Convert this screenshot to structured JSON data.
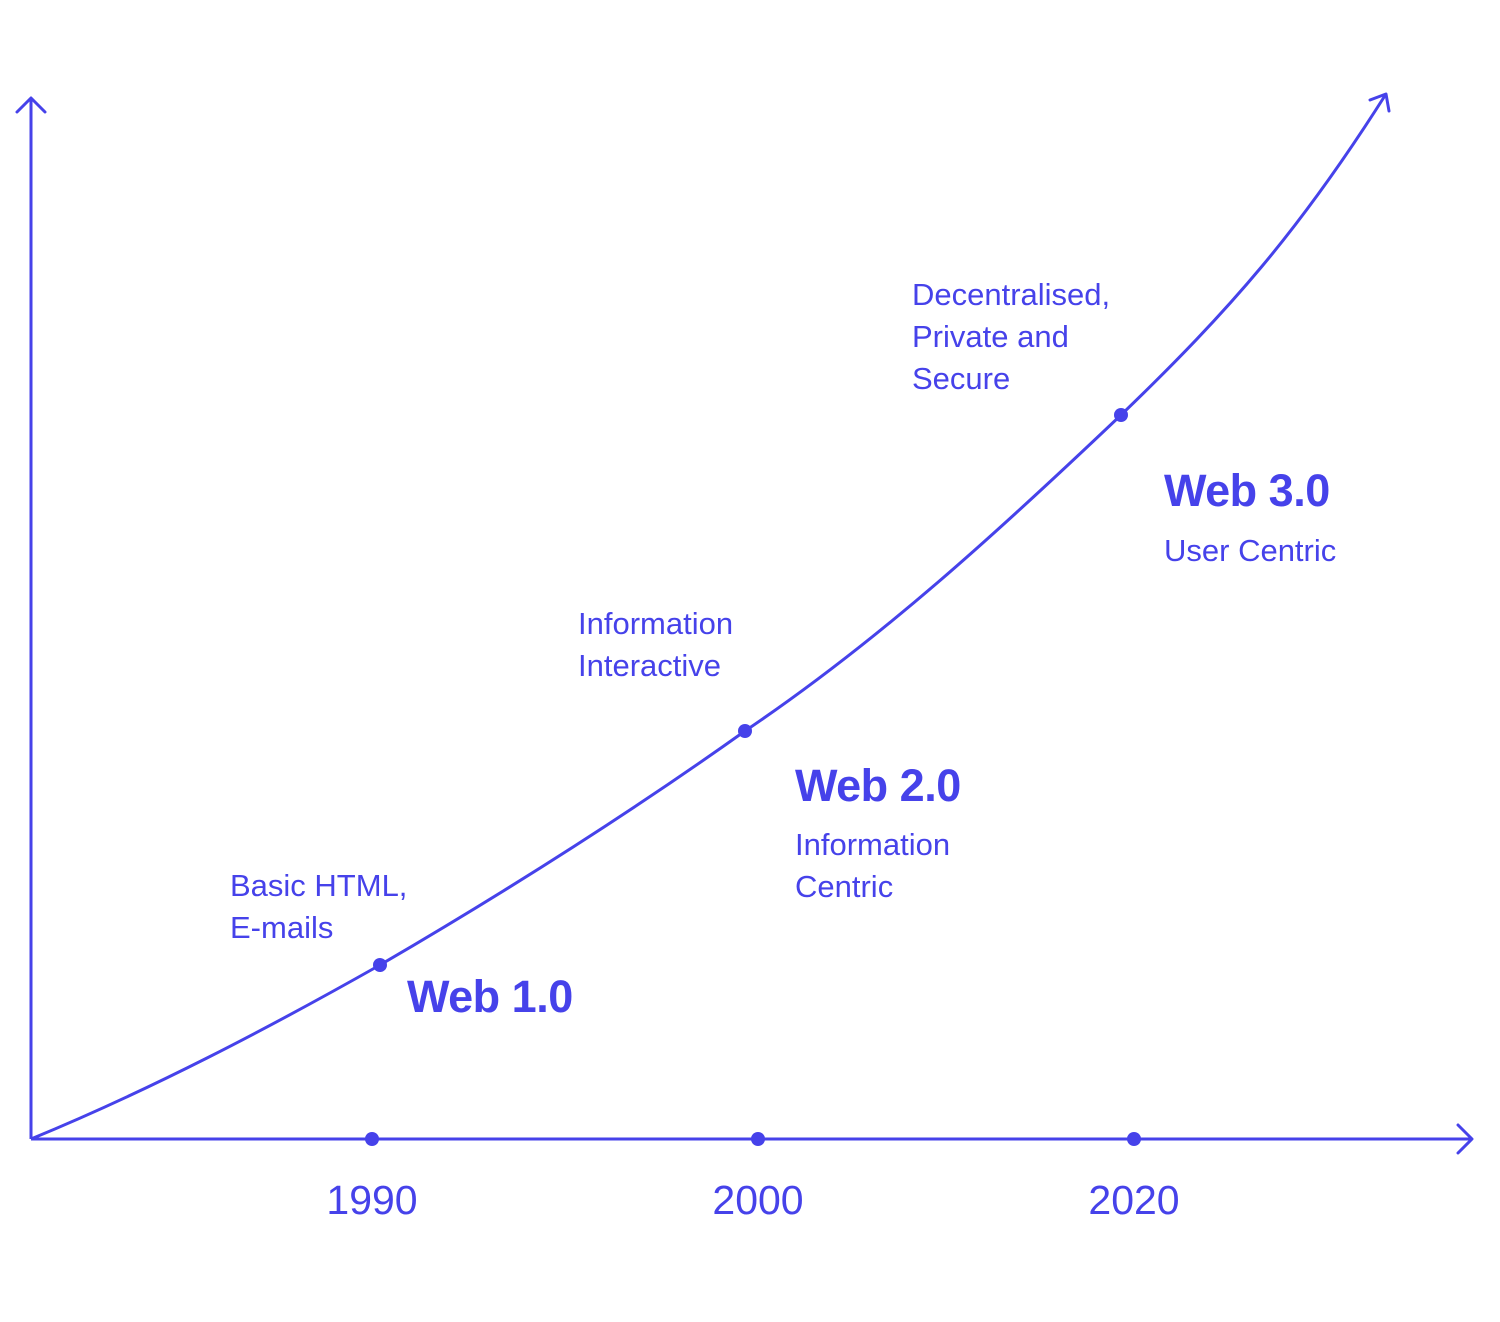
{
  "colors": {
    "accent": "#4642ea",
    "background": "#ffffff"
  },
  "axis": {
    "years": [
      "1990",
      "2000",
      "2020"
    ]
  },
  "stages": [
    {
      "name": "Web 1.0",
      "description": [
        "Basic HTML,",
        "E-mails"
      ],
      "subtitle": []
    },
    {
      "name": "Web 2.0",
      "description": [
        "Information",
        "Interactive"
      ],
      "subtitle": [
        "Information",
        "Centric"
      ]
    },
    {
      "name": "Web 3.0",
      "description": [
        "Decentralised,",
        "Private and",
        "Secure"
      ],
      "subtitle": [
        "User Centric"
      ]
    }
  ]
}
